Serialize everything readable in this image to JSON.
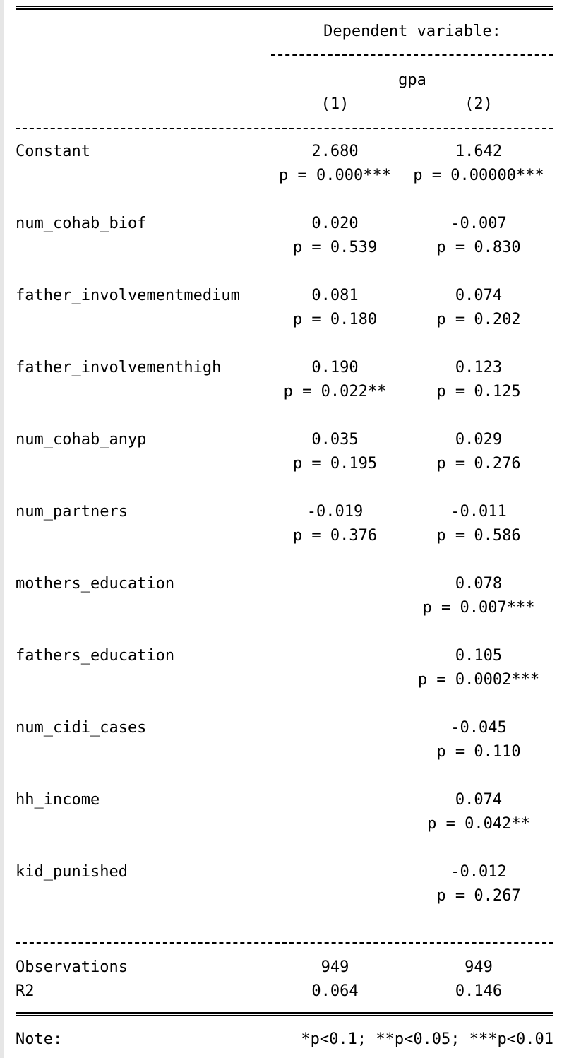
{
  "header": {
    "dependent_variable": "Dependent variable:",
    "variable_name": "gpa",
    "columns": [
      "(1)",
      "(2)"
    ]
  },
  "rows": [
    {
      "label": "Constant",
      "c1": "2.680",
      "c1p": "p = 0.000***",
      "c2": "1.642",
      "c2p": "p = 0.00000***"
    },
    {
      "label": "num_cohab_biof",
      "c1": "0.020",
      "c1p": "p = 0.539",
      "c2": "-0.007",
      "c2p": "p = 0.830"
    },
    {
      "label": "father_involvementmedium",
      "c1": "0.081",
      "c1p": "p = 0.180",
      "c2": "0.074",
      "c2p": "p = 0.202"
    },
    {
      "label": "father_involvementhigh",
      "c1": "0.190",
      "c1p": "p = 0.022**",
      "c2": "0.123",
      "c2p": "p = 0.125"
    },
    {
      "label": "num_cohab_anyp",
      "c1": "0.035",
      "c1p": "p = 0.195",
      "c2": "0.029",
      "c2p": "p = 0.276"
    },
    {
      "label": "num_partners",
      "c1": "-0.019",
      "c1p": "p = 0.376",
      "c2": "-0.011",
      "c2p": "p = 0.586"
    },
    {
      "label": "mothers_education",
      "c1": "",
      "c1p": "",
      "c2": "0.078",
      "c2p": "p = 0.007***"
    },
    {
      "label": "fathers_education",
      "c1": "",
      "c1p": "",
      "c2": "0.105",
      "c2p": "p = 0.0002***"
    },
    {
      "label": "num_cidi_cases",
      "c1": "",
      "c1p": "",
      "c2": "-0.045",
      "c2p": "p = 0.110"
    },
    {
      "label": "hh_income",
      "c1": "",
      "c1p": "",
      "c2": "0.074",
      "c2p": "p = 0.042**"
    },
    {
      "label": "kid_punished",
      "c1": "",
      "c1p": "",
      "c2": "-0.012",
      "c2p": "p = 0.267"
    }
  ],
  "stats": [
    {
      "label": "Observations",
      "c1": "949",
      "c2": "949"
    },
    {
      "label": "R2",
      "c1": "0.064",
      "c2": "0.146"
    }
  ],
  "footer": {
    "note_label": "Note:",
    "note_text": "*p<0.1; **p<0.05; ***p<0.01"
  }
}
